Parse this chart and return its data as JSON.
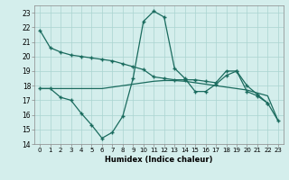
{
  "x": [
    0,
    1,
    2,
    3,
    4,
    5,
    6,
    7,
    8,
    9,
    10,
    11,
    12,
    13,
    14,
    15,
    16,
    17,
    18,
    19,
    20,
    21,
    22,
    23
  ],
  "line1": [
    21.8,
    20.6,
    20.3,
    20.1,
    20.0,
    19.9,
    19.8,
    19.7,
    19.5,
    19.3,
    19.1,
    18.6,
    18.5,
    18.4,
    18.4,
    18.4,
    18.3,
    18.2,
    19.0,
    19.0,
    18.0,
    17.4,
    16.8,
    null
  ],
  "line2": [
    17.8,
    17.8,
    17.8,
    17.8,
    17.8,
    17.8,
    17.8,
    17.9,
    18.0,
    18.1,
    18.2,
    18.3,
    18.35,
    18.35,
    18.3,
    18.2,
    18.1,
    18.0,
    17.9,
    17.8,
    17.7,
    17.5,
    17.3,
    15.6
  ],
  "line3": [
    17.8,
    17.8,
    17.2,
    17.0,
    16.1,
    15.3,
    14.4,
    14.8,
    15.9,
    18.5,
    22.4,
    23.1,
    22.7,
    19.2,
    18.5,
    17.6,
    17.6,
    18.1,
    18.7,
    19.0,
    17.6,
    17.3,
    16.8,
    15.6
  ],
  "color": "#1a6b5e",
  "bg_color": "#d4eeec",
  "grid_color": "#aad4d0",
  "xlabel": "Humidex (Indice chaleur)",
  "ylim": [
    14,
    23.5
  ],
  "xlim": [
    -0.5,
    23.5
  ],
  "yticks": [
    14,
    15,
    16,
    17,
    18,
    19,
    20,
    21,
    22,
    23
  ],
  "xticks": [
    0,
    1,
    2,
    3,
    4,
    5,
    6,
    7,
    8,
    9,
    10,
    11,
    12,
    13,
    14,
    15,
    16,
    17,
    18,
    19,
    20,
    21,
    22,
    23
  ]
}
